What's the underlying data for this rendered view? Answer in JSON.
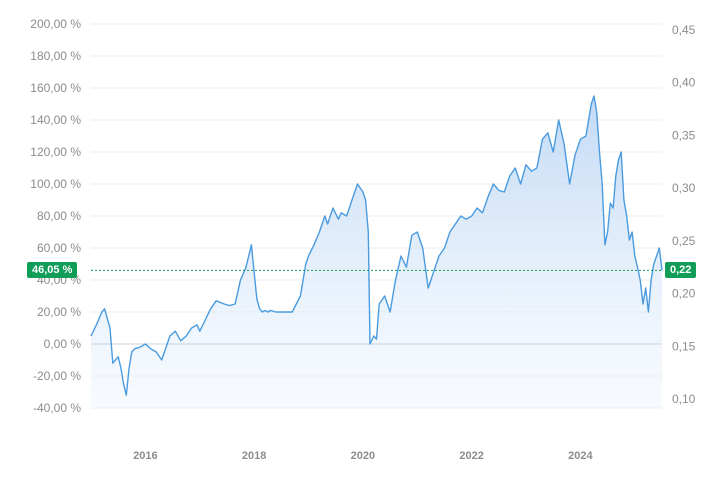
{
  "chart_data": {
    "type": "line",
    "title": "",
    "xlabel": "",
    "ylabel": "",
    "x_ticks": [
      "2016",
      "2018",
      "2020",
      "2022",
      "2024"
    ],
    "x_range": [
      2015.0,
      2025.5
    ],
    "y_left_ticks": [
      "-40,00 %",
      "-20,00 %",
      "0,00 %",
      "20,00 %",
      "40,00 %",
      "60,00 %",
      "80,00 %",
      "100,00 %",
      "120,00 %",
      "140,00 %",
      "160,00 %",
      "180,00 %",
      "200,00 %"
    ],
    "y_left_range": [
      -40,
      200
    ],
    "y_right_ticks": [
      "0,10",
      "0,15",
      "0,20",
      "0,25",
      "0,30",
      "0,35",
      "0,40",
      "0,45"
    ],
    "y_right_range": [
      0.1,
      0.45
    ],
    "grid": true,
    "current_value_left": "46,05 %",
    "current_value_right": "0,22",
    "current_level": 46.05,
    "series": [
      {
        "color": "#4a9be0",
        "x": [
          2015.0,
          2015.1,
          2015.2,
          2015.25,
          2015.35,
          2015.4,
          2015.5,
          2015.55,
          2015.6,
          2015.65,
          2015.7,
          2015.75,
          2015.8,
          2015.9,
          2016.0,
          2016.1,
          2016.2,
          2016.3,
          2016.45,
          2016.55,
          2016.65,
          2016.75,
          2016.85,
          2016.95,
          2017.0,
          2017.1,
          2017.2,
          2017.3,
          2017.45,
          2017.55,
          2017.65,
          2017.75,
          2017.85,
          2017.9,
          2017.95,
          2018.0,
          2018.05,
          2018.1,
          2018.15,
          2018.2,
          2018.25,
          2018.3,
          2018.4,
          2018.5,
          2018.7,
          2018.85,
          2018.9,
          2018.95,
          2019.0,
          2019.1,
          2019.2,
          2019.3,
          2019.35,
          2019.45,
          2019.55,
          2019.6,
          2019.7,
          2019.8,
          2019.9,
          2020.0,
          2020.05,
          2020.1,
          2020.13,
          2020.2,
          2020.25,
          2020.3,
          2020.4,
          2020.5,
          2020.6,
          2020.7,
          2020.8,
          2020.9,
          2021.0,
          2021.1,
          2021.2,
          2021.3,
          2021.4,
          2021.5,
          2021.6,
          2021.7,
          2021.8,
          2021.9,
          2022.0,
          2022.1,
          2022.2,
          2022.3,
          2022.4,
          2022.5,
          2022.6,
          2022.7,
          2022.8,
          2022.9,
          2023.0,
          2023.1,
          2023.2,
          2023.3,
          2023.4,
          2023.5,
          2023.6,
          2023.7,
          2023.8,
          2023.9,
          2024.0,
          2024.1,
          2024.2,
          2024.25,
          2024.3,
          2024.35,
          2024.4,
          2024.45,
          2024.5,
          2024.55,
          2024.6,
          2024.65,
          2024.7,
          2024.75,
          2024.8,
          2024.85,
          2024.9,
          2024.95,
          2025.0,
          2025.05,
          2025.1,
          2025.15,
          2025.2,
          2025.25,
          2025.3,
          2025.35,
          2025.4,
          2025.45,
          2025.5
        ],
        "values": [
          5,
          12,
          20,
          22,
          10,
          -12,
          -8,
          -15,
          -25,
          -32,
          -15,
          -5,
          -3,
          -2,
          0,
          -3,
          -5,
          -10,
          5,
          8,
          2,
          5,
          10,
          12,
          8,
          15,
          22,
          27,
          25,
          24,
          25,
          40,
          48,
          55,
          62,
          45,
          28,
          22,
          20,
          21,
          20,
          21,
          20,
          20,
          20,
          30,
          40,
          50,
          55,
          62,
          70,
          80,
          75,
          85,
          78,
          82,
          80,
          90,
          100,
          95,
          90,
          70,
          0,
          5,
          3,
          25,
          30,
          20,
          40,
          55,
          48,
          68,
          70,
          60,
          35,
          45,
          55,
          60,
          70,
          75,
          80,
          78,
          80,
          85,
          82,
          92,
          100,
          96,
          95,
          105,
          110,
          100,
          112,
          108,
          110,
          128,
          132,
          120,
          140,
          125,
          100,
          118,
          128,
          130,
          150,
          155,
          145,
          120,
          100,
          62,
          70,
          88,
          85,
          105,
          115,
          120,
          90,
          80,
          65,
          70,
          55,
          48,
          40,
          25,
          35,
          20,
          40,
          50,
          55,
          60,
          46
        ]
      }
    ]
  }
}
